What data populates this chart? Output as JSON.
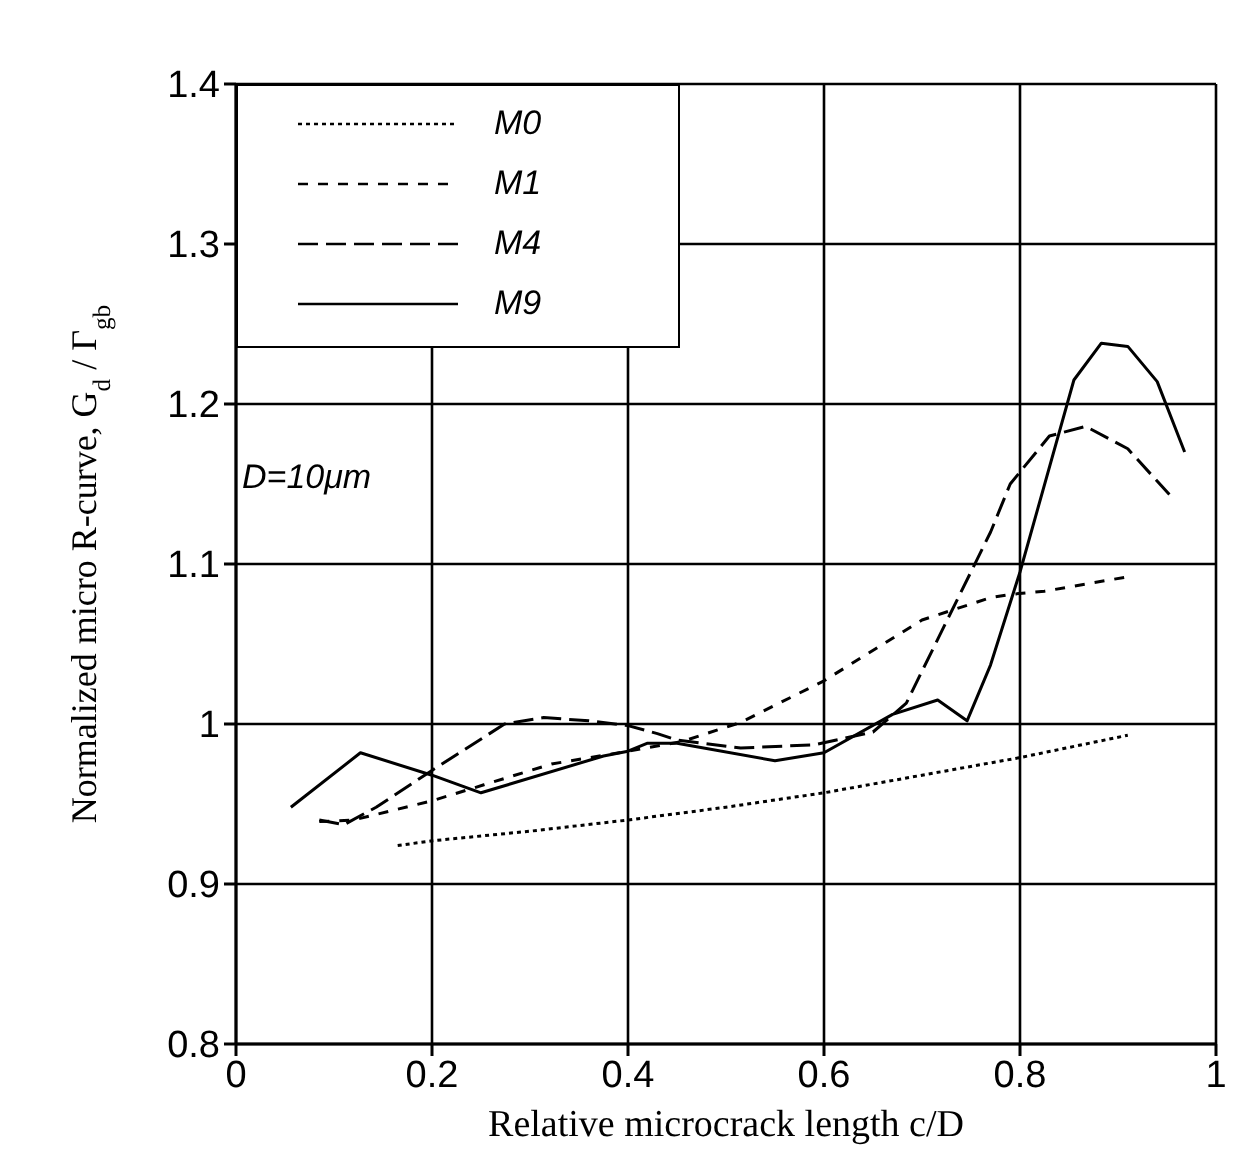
{
  "chart_data": {
    "type": "line",
    "xlabel": "Relative microcrack length c/D",
    "ylabel": "Normalized micro R-curve, G$_{d}$ / Γ$_{gb}$",
    "annotations": [
      "D=10μm"
    ],
    "xlim": [
      0,
      1
    ],
    "xticks": [
      0,
      0.2,
      0.4,
      0.6,
      0.8,
      1
    ],
    "ylim": [
      0.8,
      1.4
    ],
    "yticks": [
      0.8,
      0.9,
      1,
      1.1,
      1.2,
      1.3,
      1.4
    ],
    "grid": true,
    "legend": "top left",
    "marker": "none",
    "series": [
      {
        "name": "M0",
        "color": "#000000",
        "line_style": "dotted",
        "x": [
          0.165,
          0.2,
          0.3,
          0.4,
          0.5,
          0.6,
          0.7,
          0.8,
          0.91
        ],
        "values": [
          0.924,
          0.927,
          0.933,
          0.94,
          0.948,
          0.957,
          0.968,
          0.979,
          0.993
        ]
      },
      {
        "name": "M1",
        "color": "#000000",
        "line_style": "dashed",
        "x": [
          0.085,
          0.12,
          0.2,
          0.253,
          0.322,
          0.4,
          0.455,
          0.515,
          0.6,
          0.7,
          0.77,
          0.79,
          0.825,
          0.91
        ],
        "values": [
          0.939,
          0.94,
          0.952,
          0.962,
          0.975,
          0.983,
          0.989,
          1.001,
          1.027,
          1.065,
          1.079,
          1.081,
          1.083,
          1.092
        ]
      },
      {
        "name": "M4",
        "color": "#000000",
        "line_style": "dashed",
        "x": [
          0.085,
          0.11,
          0.143,
          0.2,
          0.274,
          0.314,
          0.36,
          0.4,
          0.43,
          0.45,
          0.515,
          0.59,
          0.65,
          0.684,
          0.7,
          0.77,
          0.79,
          0.83,
          0.867,
          0.91,
          0.953
        ],
        "values": [
          0.94,
          0.937,
          0.948,
          0.971,
          1.0,
          1.004,
          1.002,
          0.999,
          0.994,
          0.99,
          0.985,
          0.987,
          0.995,
          1.013,
          1.033,
          1.12,
          1.15,
          1.18,
          1.186,
          1.172,
          1.143
        ]
      },
      {
        "name": "M9",
        "color": "#000000",
        "line_style": "solid",
        "x": [
          0.056,
          0.127,
          0.2,
          0.25,
          0.375,
          0.4,
          0.42,
          0.45,
          0.55,
          0.6,
          0.67,
          0.716,
          0.746,
          0.77,
          0.8,
          0.855,
          0.883,
          0.91,
          0.94,
          0.968
        ],
        "values": [
          0.948,
          0.982,
          0.968,
          0.957,
          0.98,
          0.983,
          0.988,
          0.988,
          0.977,
          0.982,
          1.006,
          1.015,
          1.002,
          1.037,
          1.095,
          1.215,
          1.238,
          1.236,
          1.214,
          1.17
        ]
      }
    ]
  }
}
